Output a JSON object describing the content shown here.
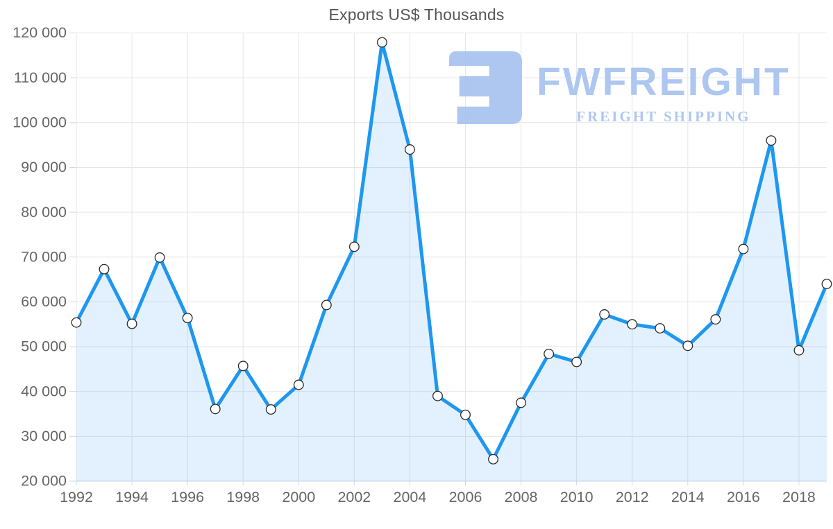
{
  "title": "Exports US$ Thousands",
  "watermark": {
    "brand": "FWFREIGHT",
    "tagline": "FREIGHT SHIPPING",
    "color": "#a8c3f0"
  },
  "chart_data": {
    "type": "area",
    "title": "Exports US$ Thousands",
    "xlabel": "",
    "ylabel": "",
    "x": [
      1992,
      1993,
      1994,
      1995,
      1996,
      1997,
      1998,
      1999,
      2000,
      2001,
      2002,
      2003,
      2004,
      2005,
      2006,
      2007,
      2008,
      2009,
      2010,
      2011,
      2012,
      2013,
      2014,
      2015,
      2016,
      2017,
      2018,
      2019
    ],
    "values": [
      55400,
      67300,
      55100,
      69900,
      56400,
      36100,
      45700,
      36000,
      41500,
      59300,
      72300,
      117900,
      94000,
      39000,
      34800,
      24900,
      37500,
      48400,
      46600,
      57200,
      55000,
      54100,
      50200,
      56100,
      71800,
      96000,
      49200,
      64000
    ],
    "ylim": [
      20000,
      120000
    ],
    "yticks": [
      20000,
      30000,
      40000,
      50000,
      60000,
      70000,
      80000,
      90000,
      100000,
      110000,
      120000
    ],
    "ytick_labels": [
      "20 000",
      "30 000",
      "40 000",
      "50 000",
      "60 000",
      "70 000",
      "80 000",
      "90 000",
      "100 000",
      "110 000",
      "120 000"
    ],
    "xticks": [
      1992,
      1994,
      1996,
      1998,
      2000,
      2002,
      2004,
      2006,
      2008,
      2010,
      2012,
      2014,
      2016,
      2018
    ],
    "xtick_labels": [
      "1992",
      "1994",
      "1996",
      "1998",
      "2000",
      "2002",
      "2004",
      "2006",
      "2008",
      "2010",
      "2012",
      "2014",
      "2016",
      "2018"
    ],
    "grid": true,
    "legend": "none",
    "colors": {
      "line": "#1e97f0",
      "fill": "#2196f3",
      "fill_opacity": "0.13",
      "grid": "#e6e6e6",
      "axis": "#ccd6eb",
      "tick": "#ccd6eb",
      "label": "#666666",
      "title": "#555555",
      "marker_fill": "#ffffff",
      "marker_stroke": "#2a2a2a"
    }
  }
}
